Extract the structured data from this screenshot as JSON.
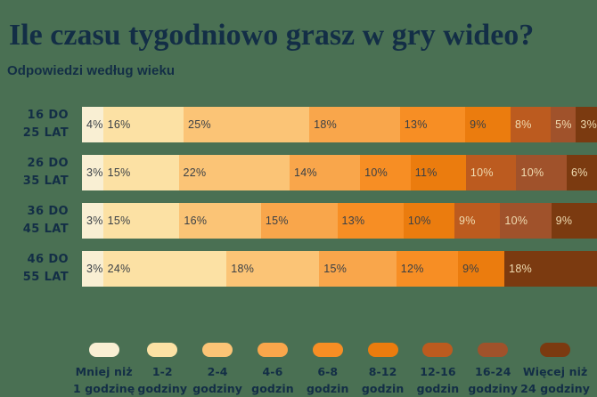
{
  "title": "Ile czasu tygodniowo grasz w gry wideo?",
  "subtitle": "Odpowiedzi według wieku",
  "colors": {
    "background": "#4A7053",
    "heading": "#132E46",
    "label_dark": "#3B4046",
    "label_light": "#F0DCB2",
    "palette": [
      "#F9EFD3",
      "#FCE1A4",
      "#FBC476",
      "#F9A64B",
      "#F78E24",
      "#EB7C0E",
      "#BC5B1F",
      "#A0522B",
      "#7B3A10"
    ]
  },
  "chart_data": {
    "type": "bar",
    "stacked": true,
    "orientation": "horizontal",
    "unit": "%",
    "categories": [
      "Mniej niż 1 godzinę",
      "1-2 godziny",
      "2-4 godziny",
      "4-6 godzin",
      "6-8 godzin",
      "8-12 godzin",
      "12-16 godzin",
      "16-24 godziny",
      "Więcej niż 24 godziny"
    ],
    "groups": [
      {
        "label_line1": "16 DO",
        "label_line2": "25 LAT",
        "values": [
          4,
          16,
          25,
          18,
          13,
          9,
          8,
          5,
          3
        ]
      },
      {
        "label_line1": "26 DO",
        "label_line2": "35 LAT",
        "values": [
          3,
          15,
          22,
          14,
          10,
          11,
          10,
          10,
          6
        ]
      },
      {
        "label_line1": "36 DO",
        "label_line2": "45 LAT",
        "values": [
          3,
          15,
          16,
          15,
          13,
          10,
          9,
          10,
          9
        ]
      },
      {
        "label_line1": "46 DO",
        "label_line2": "55 LAT",
        "values": [
          3,
          24,
          18,
          15,
          12,
          9,
          0,
          0,
          18
        ]
      }
    ],
    "legend": [
      {
        "line1": "Mniej niż",
        "line2": "1 godzinę"
      },
      {
        "line1": "1-2",
        "line2": "godziny"
      },
      {
        "line1": "2-4",
        "line2": "godziny"
      },
      {
        "line1": "4-6",
        "line2": "godzin"
      },
      {
        "line1": "6-8",
        "line2": "godzin"
      },
      {
        "line1": "8-12",
        "line2": "godzin"
      },
      {
        "line1": "12-16",
        "line2": "godzin"
      },
      {
        "line1": "16-24",
        "line2": "godziny"
      },
      {
        "line1": "Więcej niż",
        "line2": "24 godziny"
      }
    ]
  },
  "layout": {
    "row_tops": [
      120,
      174,
      228,
      282
    ],
    "light_text_from_index": 6
  }
}
